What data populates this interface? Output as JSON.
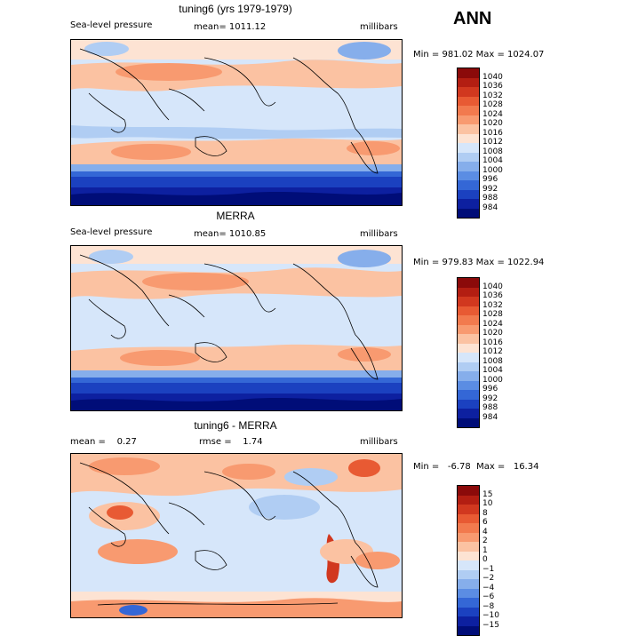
{
  "season": "ANN",
  "panels": [
    {
      "title": "tuning6 (yrs 1979-1979)",
      "left_label": "Sea-level pressure",
      "mid_label": "mean= 1011.12",
      "units": "millibars",
      "minmax": "Min = 981.02  Max = 1024.07"
    },
    {
      "title": "MERRA",
      "left_label": "Sea-level pressure",
      "mid_label": "mean= 1010.85",
      "units": "millibars",
      "minmax": "Min = 979.83  Max = 1022.94"
    },
    {
      "title": "tuning6 - MERRA",
      "left_label": "mean =    0.27",
      "mid_label": "rmse =    1.74",
      "units": "millibars",
      "minmax": "Min =   -6.78  Max =   16.34"
    }
  ],
  "colorbar_abs": {
    "labels": [
      "1040",
      "1036",
      "1032",
      "1028",
      "1024",
      "1020",
      "1016",
      "1012",
      "1008",
      "1004",
      "1000",
      "996",
      "992",
      "988",
      "984"
    ],
    "colors": [
      "#8b0a0a",
      "#b31e12",
      "#d1381f",
      "#e85a33",
      "#f27a4e",
      "#f89a70",
      "#fbc2a2",
      "#fde3d3",
      "#d6e6fa",
      "#b0cdf3",
      "#86aeeb",
      "#5b8de3",
      "#3467d6",
      "#1b41c0",
      "#0d20a0",
      "#000d78"
    ]
  },
  "colorbar_diff": {
    "labels": [
      "15",
      "10",
      "8",
      "6",
      "4",
      "2",
      "1",
      "0",
      "−1",
      "−2",
      "−4",
      "−6",
      "−8",
      "−10",
      "−15"
    ],
    "colors": [
      "#8b0a0a",
      "#b31e12",
      "#d1381f",
      "#e85a33",
      "#f27a4e",
      "#f89a70",
      "#fbc2a2",
      "#fde3d3",
      "#d6e6fa",
      "#b0cdf3",
      "#86aeeb",
      "#5b8de3",
      "#3467d6",
      "#1b41c0",
      "#0d20a0",
      "#000d78"
    ]
  }
}
